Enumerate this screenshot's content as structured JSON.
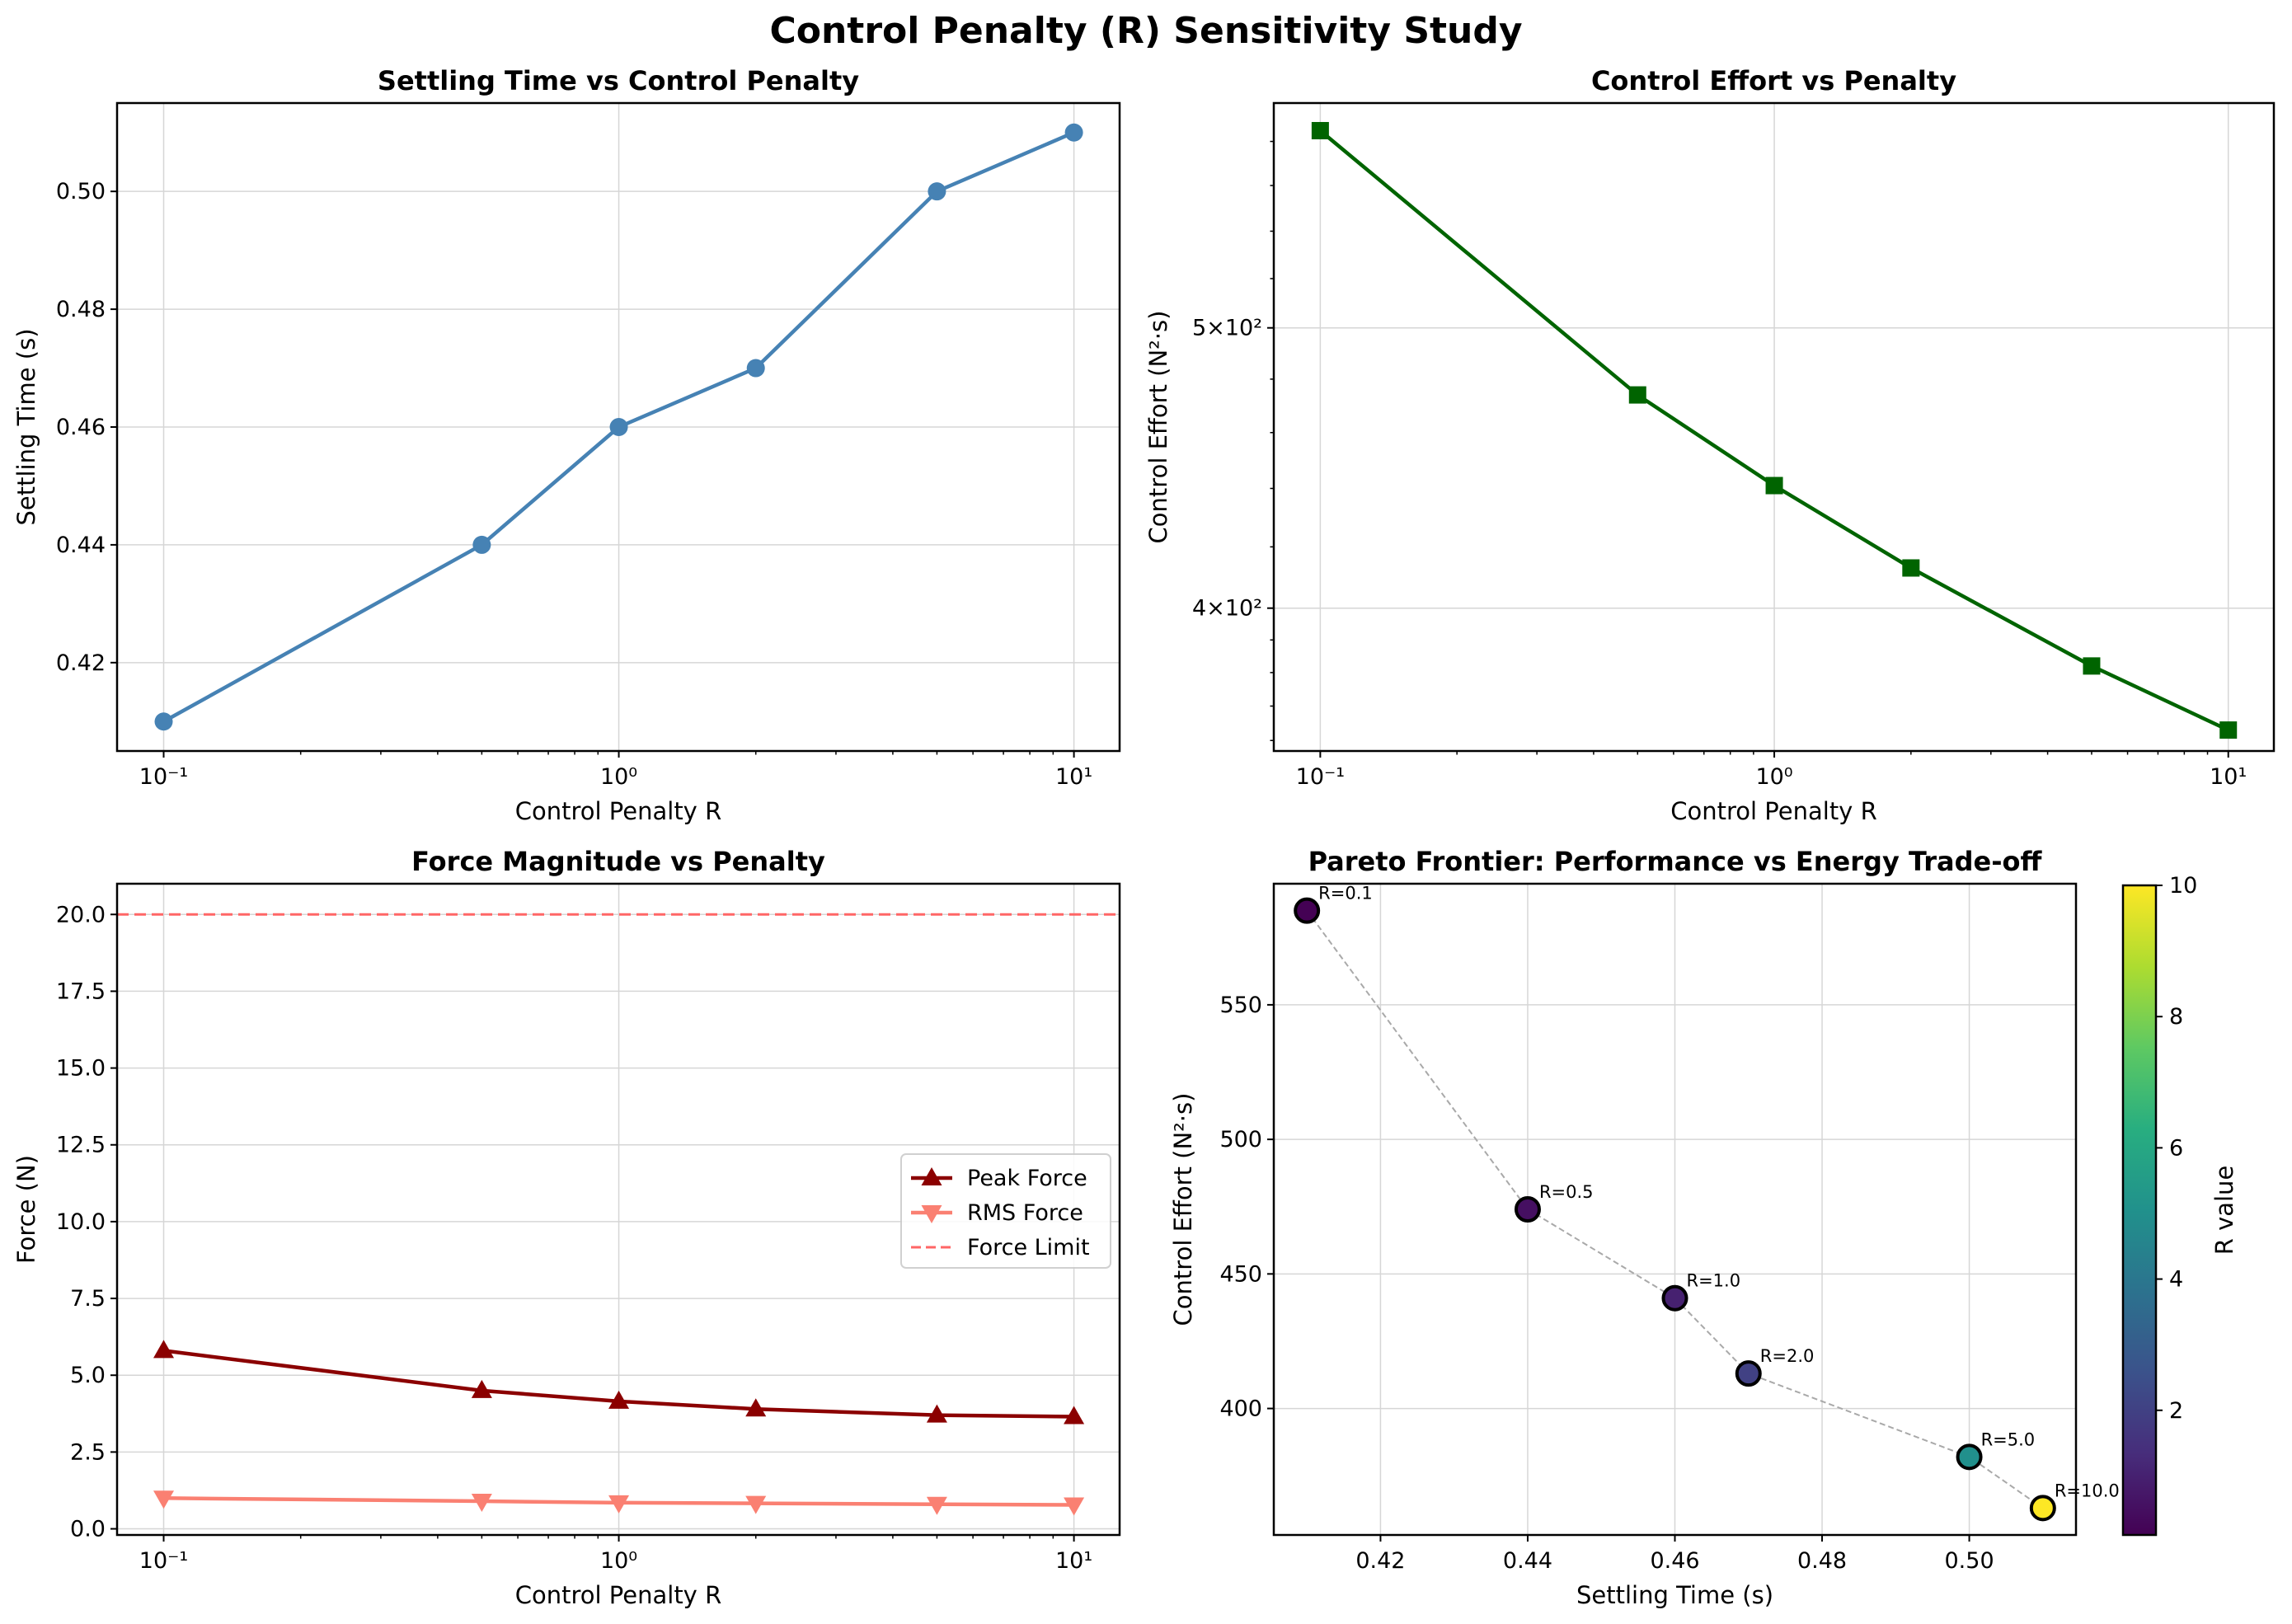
{
  "figure": {
    "title": "Control Penalty (R) Sensitivity Study"
  },
  "colors": {
    "settling": "#4682b4",
    "effort": "#006400",
    "peak": "#8b0000",
    "rms": "#fa8072",
    "limit": "#ff6666",
    "pareto_line": "#a9a9a9"
  },
  "chart_data": [
    {
      "type": "line",
      "title": "Settling Time vs Control Penalty",
      "xlabel": "Control Penalty R",
      "ylabel": "Settling Time (s)",
      "xscale": "log",
      "x": [
        0.1,
        0.5,
        1.0,
        2.0,
        5.0,
        10.0
      ],
      "xlim": [
        0.079,
        12.6
      ],
      "ylim": [
        0.405,
        0.515
      ],
      "xticks": [
        {
          "v": 0.1,
          "label": "10⁻¹"
        },
        {
          "v": 1,
          "label": "10⁰"
        },
        {
          "v": 10,
          "label": "10¹"
        }
      ],
      "yticks": [
        {
          "v": 0.42,
          "label": "0.42"
        },
        {
          "v": 0.44,
          "label": "0.44"
        },
        {
          "v": 0.46,
          "label": "0.46"
        },
        {
          "v": 0.48,
          "label": "0.48"
        },
        {
          "v": 0.5,
          "label": "0.50"
        }
      ],
      "grid": true,
      "series": [
        {
          "values": [
            0.41,
            0.44,
            0.46,
            0.47,
            0.5,
            0.51
          ],
          "marker": "circle",
          "color": "#4682b4"
        }
      ]
    },
    {
      "type": "line",
      "title": "Control Effort vs Penalty",
      "xlabel": "Control Penalty R",
      "ylabel": "Control Effort (N²·s)",
      "xscale": "log",
      "yscale": "log",
      "x": [
        0.1,
        0.5,
        1.0,
        2.0,
        5.0,
        10.0
      ],
      "xlim": [
        0.079,
        12.6
      ],
      "ylim": [
        357,
        598
      ],
      "xticks": [
        {
          "v": 0.1,
          "label": "10⁻¹"
        },
        {
          "v": 1,
          "label": "10⁰"
        },
        {
          "v": 10,
          "label": "10¹"
        }
      ],
      "yticks": [
        {
          "v": 400,
          "label": "4×10²"
        },
        {
          "v": 500,
          "label": "5×10²"
        }
      ],
      "grid": true,
      "series": [
        {
          "values": [
            585,
            474,
            441,
            413,
            382,
            363
          ],
          "marker": "square",
          "color": "#006400"
        }
      ]
    },
    {
      "type": "line",
      "title": "Force Magnitude vs Penalty",
      "xlabel": "Control Penalty R",
      "ylabel": "Force (N)",
      "xscale": "log",
      "x": [
        0.1,
        0.5,
        1.0,
        2.0,
        5.0,
        10.0
      ],
      "xlim": [
        0.079,
        12.6
      ],
      "ylim": [
        -0.2,
        21.0
      ],
      "xticks": [
        {
          "v": 0.1,
          "label": "10⁻¹"
        },
        {
          "v": 1,
          "label": "10⁰"
        },
        {
          "v": 10,
          "label": "10¹"
        }
      ],
      "yticks": [
        {
          "v": 0,
          "label": "0.0"
        },
        {
          "v": 2.5,
          "label": "2.5"
        },
        {
          "v": 5,
          "label": "5.0"
        },
        {
          "v": 7.5,
          "label": "7.5"
        },
        {
          "v": 10,
          "label": "10.0"
        },
        {
          "v": 12.5,
          "label": "12.5"
        },
        {
          "v": 15,
          "label": "15.0"
        },
        {
          "v": 17.5,
          "label": "17.5"
        },
        {
          "v": 20,
          "label": "20.0"
        }
      ],
      "grid": true,
      "legend": "center-right",
      "series": [
        {
          "name": "Peak Force",
          "values": [
            5.8,
            4.5,
            4.15,
            3.9,
            3.7,
            3.65
          ],
          "marker": "triangle-up",
          "color": "#8b0000"
        },
        {
          "name": "RMS Force",
          "values": [
            1.0,
            0.9,
            0.85,
            0.83,
            0.8,
            0.78
          ],
          "marker": "triangle-down",
          "color": "#fa8072"
        }
      ],
      "hlines": [
        {
          "name": "Force Limit",
          "value": 20.0,
          "style": "dashed",
          "color": "#ff6666"
        }
      ]
    },
    {
      "type": "scatter",
      "title": "Pareto Frontier: Performance vs Energy Trade-off",
      "xlabel": "Settling Time (s)",
      "ylabel": "Control Effort (N²·s)",
      "xlim": [
        0.4055,
        0.5145
      ],
      "ylim": [
        353,
        595
      ],
      "xticks": [
        {
          "v": 0.42,
          "label": "0.42"
        },
        {
          "v": 0.44,
          "label": "0.44"
        },
        {
          "v": 0.46,
          "label": "0.46"
        },
        {
          "v": 0.48,
          "label": "0.48"
        },
        {
          "v": 0.5,
          "label": "0.50"
        }
      ],
      "yticks": [
        {
          "v": 400,
          "label": "400"
        },
        {
          "v": 450,
          "label": "450"
        },
        {
          "v": 500,
          "label": "500"
        },
        {
          "v": 550,
          "label": "550"
        }
      ],
      "grid": true,
      "points": [
        {
          "x": 0.41,
          "y": 585,
          "r": 0.1,
          "label": "R=0.1"
        },
        {
          "x": 0.44,
          "y": 474,
          "r": 0.5,
          "label": "R=0.5"
        },
        {
          "x": 0.46,
          "y": 441,
          "r": 1.0,
          "label": "R=1.0"
        },
        {
          "x": 0.47,
          "y": 413,
          "r": 2.0,
          "label": "R=2.0"
        },
        {
          "x": 0.5,
          "y": 382,
          "r": 5.0,
          "label": "R=5.0"
        },
        {
          "x": 0.51,
          "y": 363,
          "r": 10.0,
          "label": "R=10.0"
        }
      ],
      "colorbar": {
        "label": "R value",
        "colormap": "viridis",
        "range": [
          0.1,
          10.0
        ],
        "ticks": [
          {
            "v": 2,
            "label": "2"
          },
          {
            "v": 4,
            "label": "4"
          },
          {
            "v": 6,
            "label": "6"
          },
          {
            "v": 8,
            "label": "8"
          },
          {
            "v": 10,
            "label": "10"
          }
        ]
      }
    }
  ]
}
